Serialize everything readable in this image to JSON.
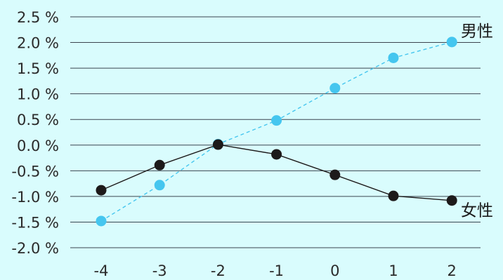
{
  "chart_data": {
    "type": "line",
    "title": "",
    "xlabel": "",
    "ylabel": "",
    "x": [
      -4,
      -3,
      -2,
      -1,
      0,
      1,
      2
    ],
    "x_tick_labels": [
      "-4",
      "-3",
      "-2",
      "-1",
      "0",
      "1",
      "2"
    ],
    "ylim": [
      -2.0,
      2.5
    ],
    "y_ticks": [
      2.5,
      2.0,
      1.5,
      1.0,
      0.5,
      0.0,
      -0.5,
      -1.0,
      -1.5,
      -2.0
    ],
    "y_tick_labels": [
      "2.5 %",
      "2.0 %",
      "1.5 %",
      "1.0 %",
      "0.5 %",
      "0.0 %",
      "-0.5 %",
      "-1.0 %",
      "-1.5 %",
      "-2.0 %"
    ],
    "grid": "horizontal",
    "legend": "none (series labelled at right end of lines)",
    "series": [
      {
        "name": "男性",
        "values": [
          -1.48,
          -0.78,
          0.02,
          0.48,
          1.11,
          1.7,
          2.01
        ],
        "color": "#45c6ef",
        "line_style": "dashed"
      },
      {
        "name": "女性",
        "values": [
          -0.88,
          -0.39,
          0.01,
          -0.18,
          -0.58,
          -0.99,
          -1.08
        ],
        "color": "#1d1a1a",
        "line_style": "solid"
      }
    ]
  },
  "colors": {
    "background": "#d9fcfd",
    "grid": "#3c4550"
  }
}
